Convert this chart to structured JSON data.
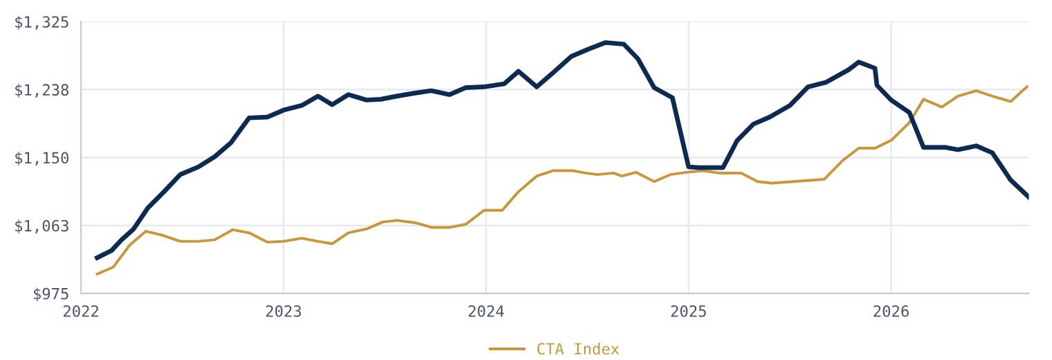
{
  "chart_data": {
    "type": "line",
    "series": [
      {
        "color": "#0d2b52",
        "x": [
          2022.08,
          2022.15,
          2022.2,
          2022.26,
          2022.33,
          2022.41,
          2022.49,
          2022.58,
          2022.66,
          2022.74,
          2022.83,
          2022.92,
          2023.0,
          2023.09,
          2023.17,
          2023.24,
          2023.32,
          2023.41,
          2023.48,
          2023.56,
          2023.65,
          2023.73,
          2023.82,
          2023.9,
          2023.99,
          2024.09,
          2024.16,
          2024.25,
          2024.33,
          2024.42,
          2024.5,
          2024.59,
          2024.68,
          2024.75,
          2024.83,
          2024.92,
          2025.0,
          2025.05,
          2025.17,
          2025.24,
          2025.32,
          2025.4,
          2025.5,
          2025.59,
          2025.68,
          2025.79,
          2025.84,
          2025.92,
          2025.93,
          2026.0,
          2026.09,
          2026.16,
          2026.27,
          2026.33,
          2026.42,
          2026.5,
          2026.59,
          2026.68
        ],
        "values": [
          1021,
          1030,
          1044,
          1058,
          1085,
          1106,
          1128,
          1138,
          1151,
          1169,
          1201,
          1202,
          1211,
          1217,
          1229,
          1218,
          1231,
          1224,
          1225,
          1229,
          1233,
          1236,
          1231,
          1240,
          1241,
          1245,
          1261,
          1241,
          1259,
          1280,
          1289,
          1298,
          1296,
          1277,
          1240,
          1227,
          1138,
          1137,
          1137,
          1172,
          1193,
          1202,
          1217,
          1241,
          1247,
          1263,
          1273,
          1265,
          1243,
          1224,
          1208,
          1163,
          1163,
          1160,
          1165,
          1156,
          1121,
          1099
        ]
      },
      {
        "name": "CTA Index",
        "color": "#c9963a",
        "x": [
          2022.08,
          2022.16,
          2022.24,
          2022.32,
          2022.4,
          2022.49,
          2022.58,
          2022.66,
          2022.75,
          2022.83,
          2022.92,
          2023.0,
          2023.09,
          2023.17,
          2023.24,
          2023.32,
          2023.41,
          2023.49,
          2023.56,
          2023.65,
          2023.73,
          2023.82,
          2023.9,
          2023.99,
          2024.08,
          2024.16,
          2024.25,
          2024.33,
          2024.43,
          2024.49,
          2024.55,
          2024.63,
          2024.67,
          2024.74,
          2024.83,
          2024.91,
          2024.99,
          2025.07,
          2025.15,
          2025.26,
          2025.34,
          2025.41,
          2025.52,
          2025.62,
          2025.67,
          2025.76,
          2025.84,
          2025.92,
          2026.0,
          2026.09,
          2026.16,
          2026.25,
          2026.33,
          2026.42,
          2026.5,
          2026.59,
          2026.67
        ],
        "values": [
          1000,
          1009,
          1037,
          1055,
          1050,
          1042,
          1042,
          1044,
          1057,
          1053,
          1041,
          1042,
          1046,
          1042,
          1039,
          1053,
          1058,
          1067,
          1069,
          1066,
          1060,
          1060,
          1064,
          1082,
          1082,
          1106,
          1126,
          1133,
          1133,
          1130,
          1128,
          1130,
          1126,
          1131,
          1119,
          1128,
          1131,
          1133,
          1130,
          1130,
          1119,
          1117,
          1119,
          1121,
          1122,
          1146,
          1162,
          1162,
          1172,
          1195,
          1225,
          1215,
          1229,
          1236,
          1229,
          1222,
          1241
        ]
      }
    ],
    "xlim": [
      2022,
      2026.68
    ],
    "xticks": [
      2022,
      2023,
      2024,
      2025,
      2026
    ],
    "ylim": [
      975,
      1325
    ],
    "yticks": [
      {
        "value": 975,
        "label": "$975"
      },
      {
        "value": 1062.5,
        "label": "$1,063"
      },
      {
        "value": 1150,
        "label": "$1,150"
      },
      {
        "value": 1237.5,
        "label": "$1,238"
      },
      {
        "value": 1325,
        "label": "$1,325"
      }
    ],
    "grid": true,
    "legend": "bottom",
    "marker": "none",
    "line_style": "solid"
  }
}
